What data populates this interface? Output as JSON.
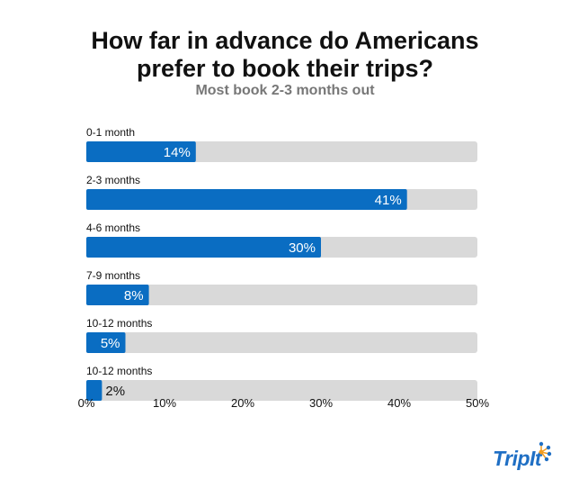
{
  "title_lines": [
    "How far in advance do Americans",
    "prefer to book their trips?"
  ],
  "subtitle": "Most book 2-3 months out",
  "logo_text": "TripIt",
  "colors": {
    "bar": "#0a6dc2",
    "track": "#d9d9d9",
    "label": "#111111"
  },
  "chart_data": {
    "type": "bar",
    "orientation": "horizontal",
    "title": "How far in advance do Americans prefer to book their trips?",
    "subtitle": "Most book 2-3 months out",
    "categories": [
      "0-1 month",
      "2-3 months",
      "4-6 months",
      "7-9 months",
      "10-12 months",
      "10-12 months"
    ],
    "values": [
      14,
      41,
      30,
      8,
      5,
      2
    ],
    "value_labels": [
      "14%",
      "41%",
      "30%",
      "8%",
      "5%",
      "2%"
    ],
    "xlim": [
      0,
      50
    ],
    "xticks": [
      0,
      10,
      20,
      30,
      40,
      50
    ],
    "xtick_labels": [
      "0%",
      "10%",
      "20%",
      "30%",
      "40%",
      "50%"
    ],
    "grid": false,
    "legend": "none"
  }
}
